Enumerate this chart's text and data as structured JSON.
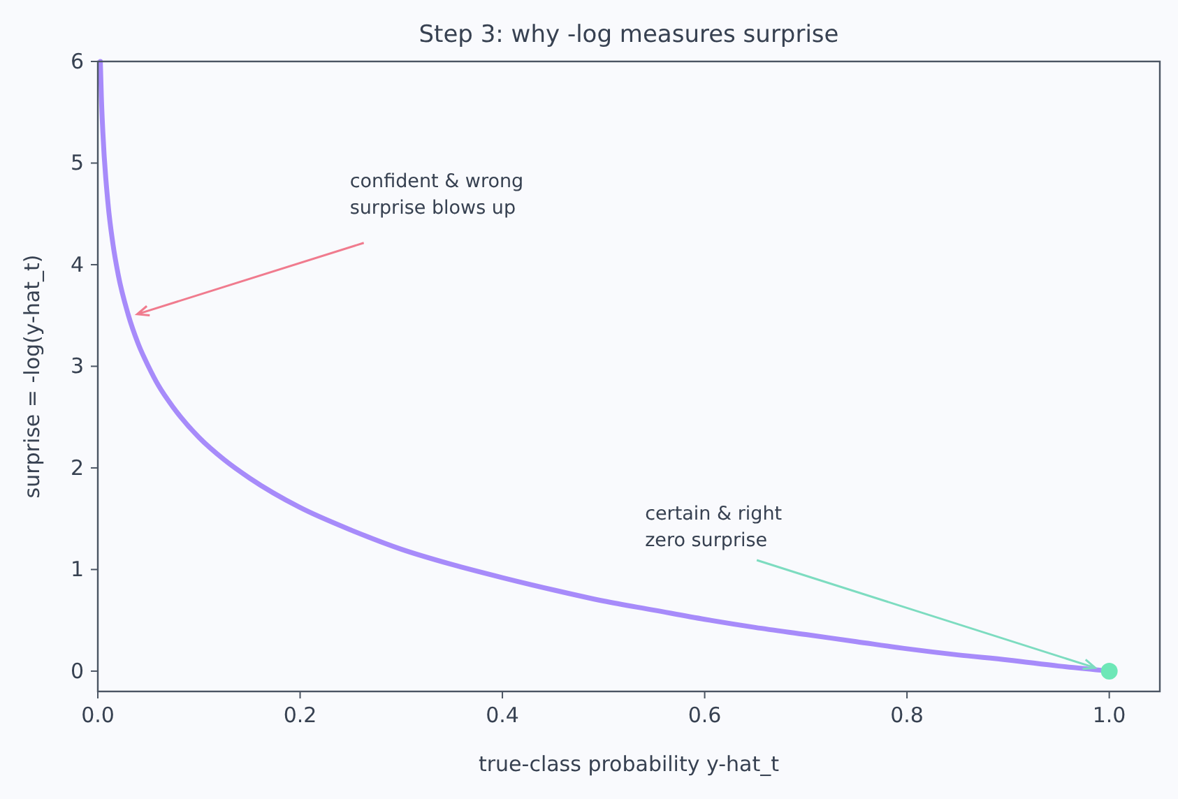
{
  "chart_data": {
    "type": "line",
    "title": "Step 3: why -log measures surprise",
    "xlabel": "true-class probability  y-hat_t",
    "ylabel": "surprise  = -log(y-hat_t)",
    "xlim": [
      0,
      1.05
    ],
    "ylim": [
      -0.2,
      6
    ],
    "xticks": [
      {
        "value": 0,
        "label": "0.0"
      },
      {
        "value": 0.2,
        "label": "0.2"
      },
      {
        "value": 0.4,
        "label": "0.4"
      },
      {
        "value": 0.6,
        "label": "0.6"
      },
      {
        "value": 0.8,
        "label": "0.8"
      },
      {
        "value": 1,
        "label": "1.0"
      }
    ],
    "yticks": [
      0,
      1,
      2,
      3,
      4,
      5,
      6
    ],
    "grid": false,
    "series": [
      {
        "color": "#a78bfa",
        "x": [
          0.0025,
          0.0035,
          0.005,
          0.01,
          0.015,
          0.02,
          0.03,
          0.04,
          0.05,
          0.06,
          0.075,
          0.1,
          0.125,
          0.15,
          0.2,
          0.25,
          0.3,
          0.35,
          0.4,
          0.45,
          0.5,
          0.55,
          0.6,
          0.65,
          0.7,
          0.75,
          0.8,
          0.85,
          0.9,
          0.95,
          1.0
        ],
        "values": [
          6.0,
          5.65,
          5.3,
          4.61,
          4.2,
          3.91,
          3.51,
          3.22,
          3.0,
          2.81,
          2.59,
          2.3,
          2.08,
          1.9,
          1.61,
          1.39,
          1.2,
          1.05,
          0.92,
          0.8,
          0.69,
          0.6,
          0.51,
          0.43,
          0.36,
          0.29,
          0.22,
          0.16,
          0.11,
          0.05,
          0
        ]
      },
      {
        "type": "scatter",
        "color": "#6ee7b7",
        "x": [
          1.0
        ],
        "values": [
          0
        ],
        "marker": "circle"
      }
    ],
    "annotations": [
      {
        "text": "confident & wrong\nsurprise blows up",
        "x": 0.035,
        "y": 3.5
      },
      {
        "text": "certain & right\nzero surprise",
        "x": 0.99,
        "y": 0.02
      }
    ]
  }
}
